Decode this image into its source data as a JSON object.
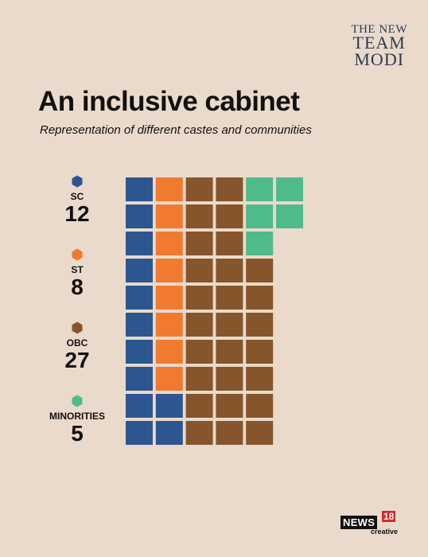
{
  "brand": {
    "line1": "THE NEW",
    "line2": "TEAM",
    "line3": "MODI"
  },
  "title": "An inclusive cabinet",
  "subtitle": "Representation of different castes and communities",
  "footer": {
    "logo_main": "NEWS",
    "logo_number": "18",
    "logo_sub": "creative"
  },
  "legend": [
    {
      "name": "SC",
      "count": "12"
    },
    {
      "name": "ST",
      "count": "8"
    },
    {
      "name": "OBC",
      "count": "27"
    },
    {
      "name": "MINORITIES",
      "count": "5"
    }
  ],
  "colors": {
    "SC": "#2c5690",
    "ST": "#f07a30",
    "OBC": "#86552b",
    "MINORITIES": "#4fba8a",
    "background": "#eadacb"
  },
  "chart_data": {
    "type": "waffle",
    "title": "An inclusive cabinet",
    "subtitle": "Representation of different castes and communities",
    "categories": [
      "SC",
      "ST",
      "OBC",
      "MINORITIES"
    ],
    "values": [
      12,
      8,
      27,
      5
    ],
    "grid": {
      "rows": 10,
      "columns": 6
    },
    "cell_assignment_rows_top_to_bottom": [
      [
        "SC",
        "ST",
        "OBC",
        "OBC",
        "MINORITIES",
        "MINORITIES"
      ],
      [
        "SC",
        "ST",
        "OBC",
        "OBC",
        "MINORITIES",
        "MINORITIES"
      ],
      [
        "SC",
        "ST",
        "OBC",
        "OBC",
        "MINORITIES",
        null
      ],
      [
        "SC",
        "ST",
        "OBC",
        "OBC",
        "OBC",
        null
      ],
      [
        "SC",
        "ST",
        "OBC",
        "OBC",
        "OBC",
        null
      ],
      [
        "SC",
        "ST",
        "OBC",
        "OBC",
        "OBC",
        null
      ],
      [
        "SC",
        "ST",
        "OBC",
        "OBC",
        "OBC",
        null
      ],
      [
        "SC",
        "ST",
        "OBC",
        "OBC",
        "OBC",
        null
      ],
      [
        "SC",
        "SC",
        "OBC",
        "OBC",
        "OBC",
        null
      ],
      [
        "SC",
        "SC",
        "OBC",
        "OBC",
        "OBC",
        null
      ]
    ],
    "legend_position": "left"
  }
}
